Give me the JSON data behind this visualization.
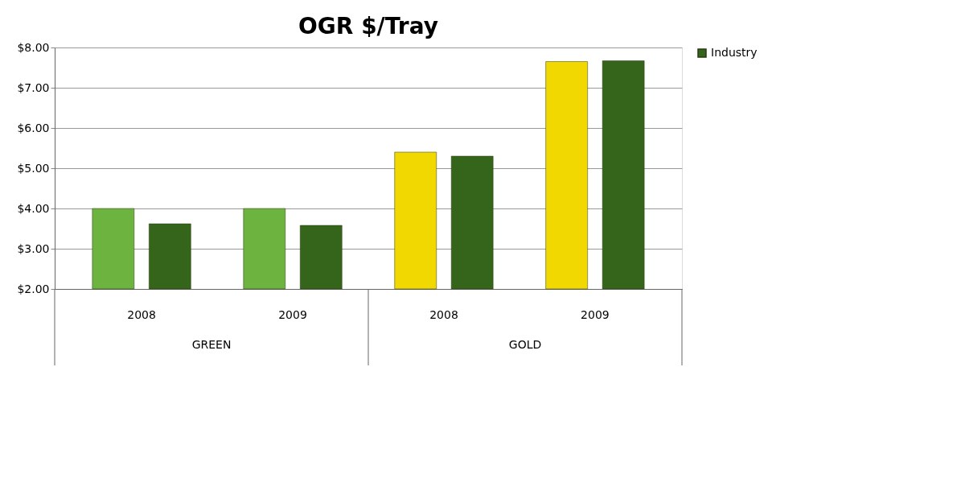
{
  "chart_data": {
    "type": "bar",
    "title": "OGR $/Tray",
    "categories": [
      "2008",
      "2009",
      "2008",
      "2009"
    ],
    "series": [
      {
        "colors": [
          "#6db33f",
          "#6db33f",
          "#f0d800",
          "#f0d800"
        ],
        "values": [
          4.0,
          4.0,
          5.4,
          7.65
        ]
      },
      {
        "name": "Industry",
        "color": "#35651a",
        "values": [
          3.62,
          3.58,
          5.3,
          7.67
        ]
      }
    ],
    "ylim": [
      2,
      8
    ],
    "yticks": [
      {
        "value": 2,
        "label": "$2.00"
      },
      {
        "value": 3,
        "label": "$3.00"
      },
      {
        "value": 4,
        "label": "$4.00"
      },
      {
        "value": 5,
        "label": "$5.00"
      },
      {
        "value": 6,
        "label": "$6.00"
      },
      {
        "value": 7,
        "label": "$7.00"
      },
      {
        "value": 8,
        "label": "$8.00"
      }
    ],
    "grid": "y",
    "legend": "right",
    "annotations": [
      "GREEN",
      "GOLD"
    ]
  }
}
